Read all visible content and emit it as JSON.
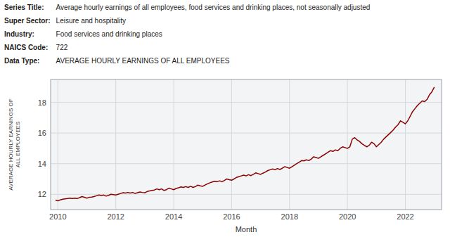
{
  "chart_data": {
    "type": "line",
    "annotations": [
      {
        "label": "Series Title:",
        "text": "Average hourly earnings of all employees, food services and drinking places, not seasonally adjusted"
      },
      {
        "label": "Super Sector:",
        "text": "Leisure and hospitality"
      },
      {
        "label": "Industry:",
        "text": "Food services and drinking places"
      },
      {
        "label": "NAICS Code:",
        "text": "722"
      },
      {
        "label": "Data Type:",
        "text": "AVERAGE HOURLY EARNINGS OF ALL EMPLOYEES"
      }
    ],
    "xlabel": "Month",
    "ylabel": "AVERAGE HOURLY EARNINGS OF\nALL EMPLOYEES",
    "color": "#8B0000",
    "grid": true,
    "xlim": [
      2009.75,
      2023.25
    ],
    "xticks": [
      2010,
      2012,
      2014,
      2016,
      2018,
      2020,
      2022
    ],
    "ylim": [
      11.0,
      19.5
    ],
    "yticks": [
      12,
      14,
      16,
      18
    ],
    "x": [
      2009.917,
      2010.0,
      2010.083,
      2010.167,
      2010.25,
      2010.333,
      2010.417,
      2010.5,
      2010.583,
      2010.667,
      2010.75,
      2010.833,
      2010.917,
      2011.0,
      2011.083,
      2011.167,
      2011.25,
      2011.333,
      2011.417,
      2011.5,
      2011.583,
      2011.667,
      2011.75,
      2011.833,
      2011.917,
      2012.0,
      2012.083,
      2012.167,
      2012.25,
      2012.333,
      2012.417,
      2012.5,
      2012.583,
      2012.667,
      2012.75,
      2012.833,
      2012.917,
      2013.0,
      2013.083,
      2013.167,
      2013.25,
      2013.333,
      2013.417,
      2013.5,
      2013.583,
      2013.667,
      2013.75,
      2013.833,
      2013.917,
      2014.0,
      2014.083,
      2014.167,
      2014.25,
      2014.333,
      2014.417,
      2014.5,
      2014.583,
      2014.667,
      2014.75,
      2014.833,
      2014.917,
      2015.0,
      2015.083,
      2015.167,
      2015.25,
      2015.333,
      2015.417,
      2015.5,
      2015.583,
      2015.667,
      2015.75,
      2015.833,
      2015.917,
      2016.0,
      2016.083,
      2016.167,
      2016.25,
      2016.333,
      2016.417,
      2016.5,
      2016.583,
      2016.667,
      2016.75,
      2016.833,
      2016.917,
      2017.0,
      2017.083,
      2017.167,
      2017.25,
      2017.333,
      2017.417,
      2017.5,
      2017.583,
      2017.667,
      2017.75,
      2017.833,
      2017.917,
      2018.0,
      2018.083,
      2018.167,
      2018.25,
      2018.333,
      2018.417,
      2018.5,
      2018.583,
      2018.667,
      2018.75,
      2018.833,
      2018.917,
      2019.0,
      2019.083,
      2019.167,
      2019.25,
      2019.333,
      2019.417,
      2019.5,
      2019.583,
      2019.667,
      2019.75,
      2019.833,
      2019.917,
      2020.0,
      2020.083,
      2020.167,
      2020.25,
      2020.333,
      2020.417,
      2020.5,
      2020.583,
      2020.667,
      2020.75,
      2020.833,
      2020.917,
      2021.0,
      2021.083,
      2021.167,
      2021.25,
      2021.333,
      2021.417,
      2021.5,
      2021.583,
      2021.667,
      2021.75,
      2021.833,
      2021.917,
      2022.0,
      2022.083,
      2022.167,
      2022.25,
      2022.333,
      2022.417,
      2022.5,
      2022.583,
      2022.667,
      2022.75,
      2022.833,
      2022.917,
      2023.0
    ],
    "values": [
      11.62,
      11.57,
      11.63,
      11.68,
      11.7,
      11.72,
      11.75,
      11.72,
      11.75,
      11.72,
      11.78,
      11.85,
      11.8,
      11.75,
      11.8,
      11.82,
      11.85,
      11.9,
      11.95,
      11.92,
      11.95,
      11.88,
      11.93,
      12.0,
      11.98,
      11.95,
      12.0,
      12.05,
      12.1,
      12.08,
      12.12,
      12.08,
      12.12,
      12.05,
      12.1,
      12.15,
      12.12,
      12.1,
      12.18,
      12.22,
      12.25,
      12.28,
      12.35,
      12.3,
      12.35,
      12.25,
      12.3,
      12.4,
      12.35,
      12.3,
      12.38,
      12.42,
      12.48,
      12.45,
      12.5,
      12.45,
      12.52,
      12.45,
      12.5,
      12.6,
      12.55,
      12.52,
      12.6,
      12.68,
      12.75,
      12.8,
      12.85,
      12.82,
      12.88,
      12.82,
      12.9,
      13.0,
      12.95,
      12.92,
      13.0,
      13.1,
      13.15,
      13.2,
      13.25,
      13.2,
      13.28,
      13.22,
      13.3,
      13.4,
      13.35,
      13.3,
      13.38,
      13.45,
      13.55,
      13.6,
      13.65,
      13.6,
      13.68,
      13.62,
      13.7,
      13.8,
      13.75,
      13.7,
      13.8,
      13.9,
      14.0,
      14.1,
      14.2,
      14.18,
      14.25,
      14.2,
      14.3,
      14.45,
      14.4,
      14.35,
      14.45,
      14.55,
      14.65,
      14.75,
      14.85,
      14.8,
      14.9,
      14.85,
      15.0,
      15.1,
      15.05,
      15.0,
      15.1,
      15.6,
      15.7,
      15.55,
      15.45,
      15.3,
      15.2,
      15.1,
      15.2,
      15.4,
      15.3,
      15.1,
      15.25,
      15.4,
      15.6,
      15.75,
      15.9,
      16.05,
      16.2,
      16.4,
      16.55,
      16.8,
      16.7,
      16.6,
      16.8,
      17.1,
      17.4,
      17.6,
      17.8,
      17.95,
      18.1,
      18.05,
      18.2,
      18.5,
      18.7,
      19.0
    ]
  }
}
